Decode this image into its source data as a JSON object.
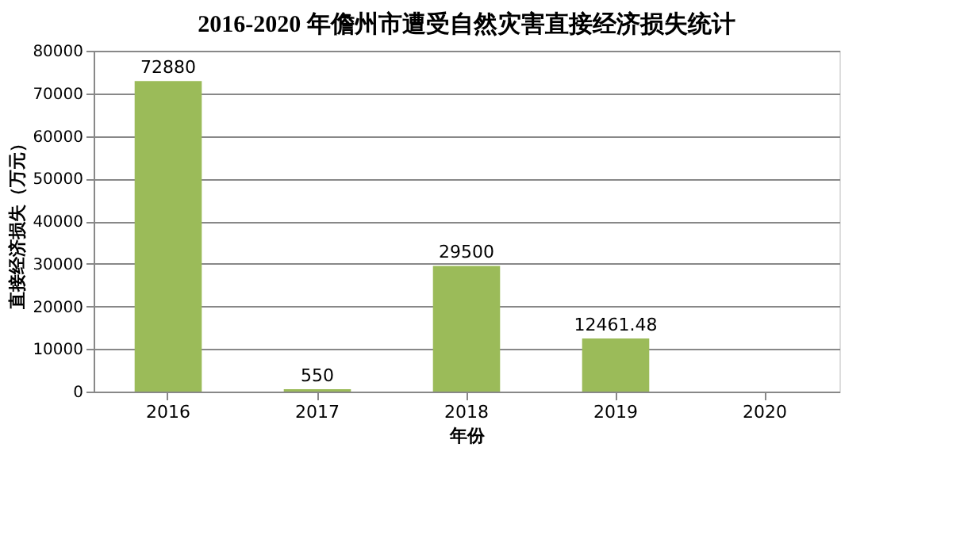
{
  "chart_data": {
    "type": "bar",
    "title": "2016-2020 年儋州市遭受自然灾害直接经济损失统计",
    "xlabel": "年份",
    "ylabel": "直接经济损失（万元）",
    "categories": [
      "2016",
      "2017",
      "2018",
      "2019",
      "2020"
    ],
    "values": [
      72880,
      550,
      29500,
      12461.48,
      0
    ],
    "value_labels": [
      "72880",
      "550",
      "29500",
      "12461.48",
      null
    ],
    "color": "#9bbb59",
    "ylim": [
      0,
      80000
    ],
    "yticks": [
      0,
      10000,
      20000,
      30000,
      40000,
      50000,
      60000,
      70000,
      80000
    ],
    "grid": "y"
  }
}
